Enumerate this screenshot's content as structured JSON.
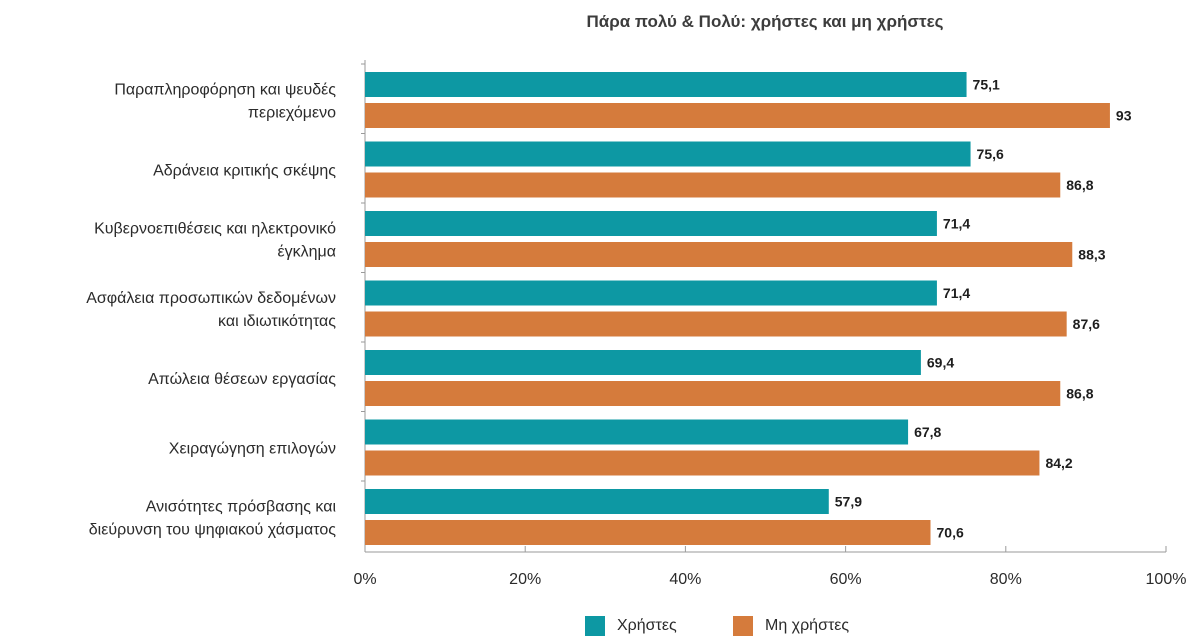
{
  "chart_data": {
    "type": "bar",
    "orientation": "horizontal",
    "title": "Πάρα πολύ & Πολύ: χρήστες και μη χρήστες",
    "categories": [
      [
        "Παραπληροφόρηση και ψευδές",
        "περιεχόμενο"
      ],
      [
        "Αδράνεια κριτικής σκέψης"
      ],
      [
        "Κυβερνοεπιθέσεις και ηλεκτρονικό",
        "έγκλημα"
      ],
      [
        "Ασφάλεια προσωπικών δεδομένων",
        "και ιδιωτικότητας"
      ],
      [
        "Απώλεια θέσεων εργασίας"
      ],
      [
        "Χειραγώγηση επιλογών"
      ],
      [
        "Ανισότητες πρόσβασης και",
        "διεύρυνση του ψηφιακού χάσματος"
      ]
    ],
    "series": [
      {
        "name": "Χρήστες",
        "color": "#0d98a3",
        "values": [
          75.1,
          75.6,
          71.4,
          71.4,
          69.4,
          67.8,
          57.9
        ],
        "labels": [
          "75,1",
          "75,6",
          "71,4",
          "71,4",
          "69,4",
          "67,8",
          "57,9"
        ]
      },
      {
        "name": "Μη χρήστες",
        "color": "#d57b3c",
        "values": [
          93,
          86.8,
          88.3,
          87.6,
          86.8,
          84.2,
          70.6
        ],
        "labels": [
          "93",
          "86,8",
          "88,3",
          "87,6",
          "86,8",
          "84,2",
          "70,6"
        ]
      }
    ],
    "xlim": [
      0,
      100
    ],
    "xticks": [
      0,
      20,
      40,
      60,
      80,
      100
    ],
    "xtick_labels": [
      "0%",
      "20%",
      "40%",
      "60%",
      "80%",
      "100%"
    ],
    "grid": false,
    "legend": "bottom-center"
  }
}
